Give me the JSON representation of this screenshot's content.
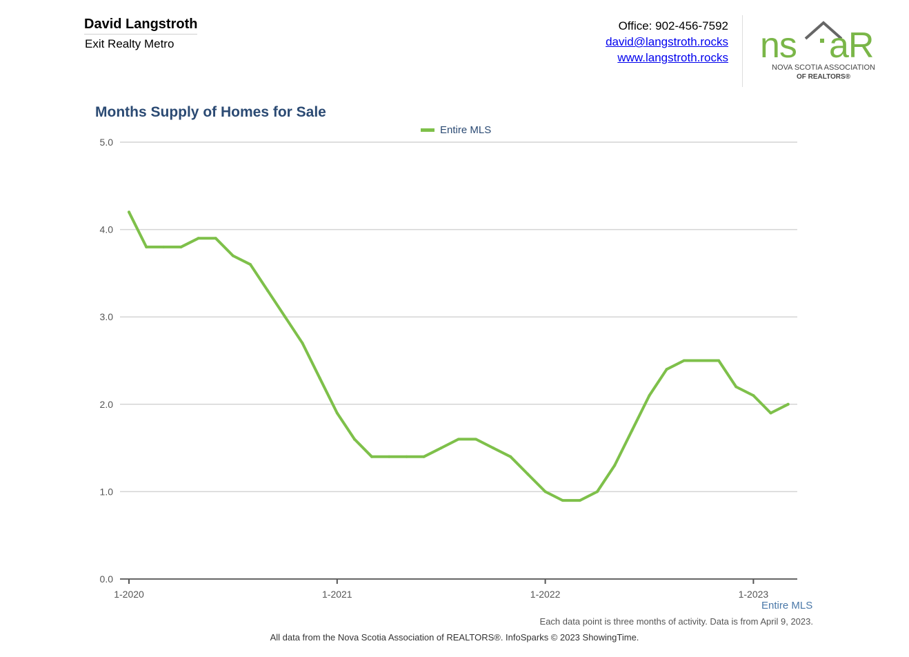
{
  "header": {
    "agent_name": "David Langstroth",
    "company": "Exit Realty Metro",
    "office": "Office: 902-456-7592",
    "email": "david@langstroth.rocks",
    "website": "www.langstroth.rocks"
  },
  "logo": {
    "text_ns": "ns",
    "text_ar": "aR",
    "line1": "NOVA SCOTIA ASSOCIATION",
    "line2": "OF REALTORS®",
    "green": "#7ab648",
    "gray": "#666666"
  },
  "chart_data": {
    "type": "line",
    "title": "Months Supply of Homes for Sale",
    "x": [
      "2020-01",
      "2020-02",
      "2020-03",
      "2020-04",
      "2020-05",
      "2020-06",
      "2020-07",
      "2020-08",
      "2020-09",
      "2020-10",
      "2020-11",
      "2020-12",
      "2021-01",
      "2021-02",
      "2021-03",
      "2021-04",
      "2021-05",
      "2021-06",
      "2021-07",
      "2021-08",
      "2021-09",
      "2021-10",
      "2021-11",
      "2021-12",
      "2022-01",
      "2022-02",
      "2022-03",
      "2022-04",
      "2022-05",
      "2022-06",
      "2022-07",
      "2022-08",
      "2022-09",
      "2022-10",
      "2022-11",
      "2022-12",
      "2023-01",
      "2023-02",
      "2023-03"
    ],
    "series": [
      {
        "name": "Entire MLS",
        "color": "#7ec04a",
        "values": [
          4.2,
          3.8,
          3.8,
          3.8,
          3.9,
          3.9,
          3.7,
          3.6,
          3.3,
          3.0,
          2.7,
          2.3,
          1.9,
          1.6,
          1.4,
          1.4,
          1.4,
          1.4,
          1.5,
          1.6,
          1.6,
          1.5,
          1.4,
          1.2,
          1.0,
          0.9,
          0.9,
          1.0,
          1.3,
          1.7,
          2.1,
          2.4,
          2.5,
          2.5,
          2.5,
          2.2,
          2.1,
          1.9,
          2.0
        ]
      }
    ],
    "x_ticks": [
      "1-2020",
      "1-2021",
      "1-2022",
      "1-2023"
    ],
    "y_ticks": [
      "0.0",
      "1.0",
      "2.0",
      "3.0",
      "4.0",
      "5.0"
    ],
    "ylim": [
      0,
      5
    ],
    "legend_position": "top-center",
    "grid": true
  },
  "footer": {
    "series_label": "Entire MLS",
    "note": "Each data point is three months of activity. Data is from April 9, 2023.",
    "source": "All data from the Nova Scotia Association of REALTORS®. InfoSparks © 2023 ShowingTime."
  }
}
